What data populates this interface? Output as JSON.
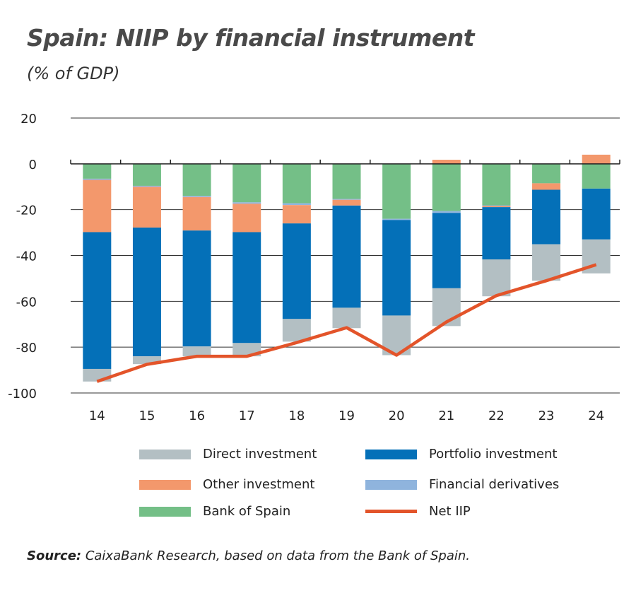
{
  "title": "Spain: NIIP by financial instrument",
  "subtitle": "(% of GDP)",
  "source_label": "Source:",
  "source_text": " CaixaBank Research, based on data from the Bank of Spain.",
  "chart_data": {
    "type": "bar",
    "stacked": true,
    "categories": [
      "14",
      "15",
      "16",
      "17",
      "18",
      "19",
      "20",
      "21",
      "22",
      "23",
      "24"
    ],
    "ylim": [
      -100,
      20
    ],
    "yticks": [
      20,
      0,
      -20,
      -40,
      -60,
      -80,
      -100
    ],
    "grid": true,
    "legend_placement": "bottom",
    "series": [
      {
        "name": "Bank of Spain",
        "color": "#74bf87",
        "values": [
          -6.5,
          -9.6,
          -14,
          -16.8,
          -17.2,
          -15.3,
          -24,
          -20.6,
          -18.1,
          -8.5,
          -10.8
        ]
      },
      {
        "name": "Financial derivatives",
        "color": "#8fb4dd",
        "values": [
          -0.5,
          -0.4,
          -0.5,
          -0.6,
          -0.8,
          -0.4,
          -0.5,
          -0.8,
          -0.3,
          0,
          0
        ]
      },
      {
        "name": "Other investment",
        "color": "#f3986c",
        "values": [
          -22.8,
          -17.8,
          -14.6,
          -12.4,
          -8,
          -2.5,
          0,
          1.8,
          -0.5,
          -2.8,
          4
        ]
      },
      {
        "name": "Portfolio investment",
        "color": "#0470b8",
        "values": [
          -59.7,
          -56.2,
          -50.6,
          -48.4,
          -41.7,
          -44.6,
          -41.7,
          -32.9,
          -22.8,
          -23.8,
          -22.2
        ]
      },
      {
        "name": "Direct investment",
        "color": "#b3bfc3",
        "values": [
          -5.5,
          -3.4,
          -4.3,
          -5.8,
          -9.9,
          -8.9,
          -17.3,
          -16.5,
          -16.1,
          -15.9,
          -14.8
        ]
      }
    ],
    "line": {
      "name": "Net IIP",
      "color": "#e3542a",
      "values": [
        -95,
        -87.5,
        -84,
        -84,
        -78,
        -71.5,
        -83.5,
        -69,
        -57.5,
        -51,
        -44
      ]
    },
    "legend": [
      "Direct investment",
      "Portfolio investment",
      "Other investment",
      "Financial derivatives",
      "Bank of Spain",
      "Net IIP"
    ]
  }
}
